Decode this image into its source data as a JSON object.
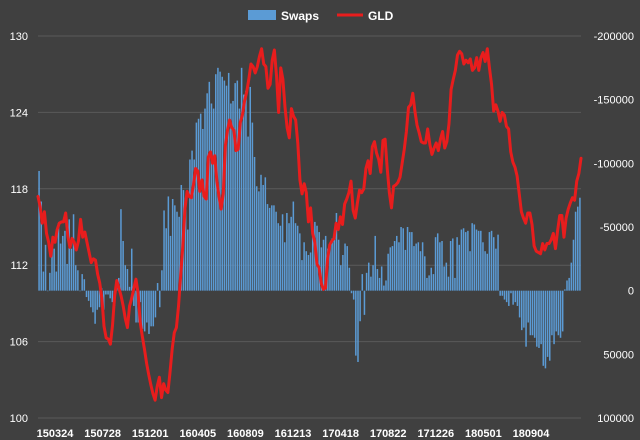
{
  "chart_data": {
    "type": "bar+line",
    "legend": {
      "placement": "top-center",
      "items": [
        {
          "label": "Swaps",
          "kind": "bar",
          "color": "#5b9bd5"
        },
        {
          "label": "GLD",
          "kind": "line",
          "color": "#e81d1d"
        }
      ]
    },
    "left_axis": {
      "range": [
        100,
        130
      ],
      "ticks": [
        100,
        106,
        112,
        118,
        124,
        130
      ],
      "tick_labels": [
        "100",
        "106",
        "112",
        "118",
        "124",
        "130"
      ]
    },
    "right_axis": {
      "range": [
        -200000,
        100000
      ],
      "reversed": true,
      "ticks": [
        -200000,
        -150000,
        -100000,
        -50000,
        0,
        50000,
        100000
      ],
      "tick_labels": [
        "-200000",
        "-150000",
        "-100000",
        "-50000",
        "0",
        "50000",
        "100000"
      ]
    },
    "x_tick_labels": [
      "150324",
      "150728",
      "151201",
      "160405",
      "160809",
      "161213",
      "170418",
      "170822",
      "171226",
      "180501",
      "180904"
    ],
    "grid": {
      "horizontal": true,
      "vertical": false
    },
    "swaps_values": [
      -94000,
      -70000,
      -15000,
      -36000,
      0,
      -14000,
      -39000,
      -33000,
      -15000,
      -53000,
      -37000,
      -43000,
      -47000,
      -21000,
      -56000,
      -33000,
      -60000,
      -20000,
      -16000,
      0,
      -13000,
      -9000,
      5000,
      8000,
      13000,
      17000,
      26000,
      15000,
      13000,
      -2000,
      15000,
      3000,
      3000,
      6000,
      9000,
      12000,
      -4000,
      -10000,
      -64000,
      -39000,
      -20000,
      -17000,
      -3000,
      -33000,
      12000,
      25000,
      25000,
      9000,
      30000,
      32000,
      25000,
      34000,
      28000,
      28000,
      21000,
      -6000,
      13000,
      -16000,
      -63000,
      -49000,
      -74000,
      -43000,
      -72000,
      -67000,
      -62000,
      -58000,
      -83000,
      -79000,
      -73000,
      -48000,
      -103000,
      -110000,
      -103000,
      -132000,
      -135000,
      -139000,
      -127000,
      -143000,
      -155000,
      -164000,
      -147000,
      -143000,
      -170000,
      -175000,
      -172000,
      -168000,
      -165000,
      -161000,
      -171000,
      -147000,
      -149000,
      -163000,
      -165000,
      -143000,
      -175000,
      -154000,
      -157000,
      -121000,
      -160000,
      -132000,
      -105000,
      -82000,
      -78000,
      -91000,
      -83000,
      -89000,
      -68000,
      -65000,
      -67000,
      -67000,
      -62000,
      -53000,
      -51000,
      -60000,
      -38000,
      -61000,
      -53000,
      -58000,
      -70000,
      -53000,
      -51000,
      -45000,
      -24000,
      -38000,
      -31000,
      -28000,
      -30000,
      -52000,
      -54000,
      -51000,
      -46000,
      -34000,
      -40000,
      -43000,
      -33000,
      -36000,
      -41000,
      -43000,
      -61000,
      -40000,
      -20000,
      -28000,
      -37000,
      -35000,
      -18000,
      2000,
      7000,
      51000,
      56000,
      24000,
      -13000,
      19000,
      -14000,
      -22000,
      -11000,
      -20000,
      -43000,
      -17000,
      -10000,
      -19000,
      -4000,
      -8000,
      -29000,
      -34000,
      -35000,
      -39000,
      -43000,
      -38000,
      -50000,
      -49000,
      -32000,
      -50000,
      -46000,
      -46000,
      -35000,
      -37000,
      -38000,
      -31000,
      -38000,
      -27000,
      -10000,
      -12000,
      -18000,
      -13000,
      -42000,
      -45000,
      -38000,
      -39000,
      -19000,
      -22000,
      -11000,
      -39000,
      -41000,
      -10000,
      -42000,
      -36000,
      -48000,
      -49000,
      -46000,
      -47000,
      -31000,
      -53000,
      -52000,
      -48000,
      -47000,
      -47000,
      -38000,
      -31000,
      -29000,
      -46000,
      -47000,
      -42000,
      -33000,
      -44000,
      4000,
      4000,
      7000,
      9000,
      12000,
      2000,
      11000,
      9000,
      12000,
      21000,
      31000,
      29000,
      44000,
      25000,
      35000,
      35000,
      37000,
      44000,
      45000,
      42000,
      59000,
      61000,
      52000,
      55000,
      35000,
      42000,
      32000,
      35000,
      37000,
      32000,
      -1000,
      -8000,
      -10000,
      -22000,
      -40000,
      -62000,
      -66000,
      -73000
    ],
    "gld_values": [
      117.4,
      116.6,
      115.3,
      116.2,
      114.5,
      113.8,
      112.7,
      114.2,
      113.8,
      114.8,
      115.3,
      115.4,
      115.4,
      116.1,
      114.3,
      113.4,
      114.1,
      113.8,
      113.2,
      113.9,
      115.6,
      114.2,
      114.6,
      113.8,
      113.0,
      112.2,
      112.5,
      112.4,
      111.3,
      110.6,
      109.4,
      107.2,
      106.3,
      106.2,
      105.8,
      107.3,
      109.6,
      110.8,
      110.2,
      109.6,
      108.8,
      107.8,
      107.1,
      108.8,
      109.4,
      110.2,
      110.9,
      109.8,
      107.5,
      106.4,
      105.4,
      104.3,
      103.4,
      102.6,
      101.9,
      101.4,
      102.5,
      103.2,
      101.6,
      102.7,
      102.2,
      102.0,
      103.6,
      105.4,
      106.7,
      107.1,
      108.8,
      111.2,
      113.5,
      116.4,
      117.8,
      117.4,
      117.3,
      118.3,
      119.6,
      119.4,
      117.8,
      118.7,
      117.4,
      117.2,
      120.5,
      120.9,
      120.0,
      120.6,
      118.6,
      117.4,
      116.4,
      117.6,
      121.4,
      122.6,
      123.4,
      122.8,
      122.6,
      121.0,
      121.1,
      123.2,
      123.8,
      124.9,
      125.6,
      126.6,
      127.8,
      127.6,
      127.1,
      127.6,
      128.4,
      129.0,
      127.8,
      127.6,
      125.9,
      126.2,
      128.1,
      128.9,
      126.9,
      124.0,
      127.5,
      126.6,
      124.4,
      122.8,
      122.0,
      124.3,
      123.7,
      123.4,
      121.6,
      118.7,
      117.6,
      118.4,
      117.7,
      115.4,
      116.5,
      114.5,
      113.8,
      112.1,
      111.8,
      110.6,
      110.1,
      110.2,
      112.5,
      113.6,
      113.9,
      114.1,
      115.3,
      114.8,
      115.8,
      115.2,
      116.8,
      117.2,
      117.7,
      118.6,
      116.3,
      115.7,
      116.9,
      117.9,
      117.7,
      118.0,
      119.6,
      120.2,
      119.2,
      121.3,
      121.7,
      120.8,
      120.3,
      119.3,
      121.8,
      121.9,
      119.6,
      117.7,
      116.5,
      118.2,
      118.3,
      118.5,
      118.9,
      120.0,
      121.1,
      122.5,
      124.4,
      124.6,
      125.5,
      124.1,
      123.0,
      122.4,
      121.7,
      121.6,
      121.6,
      122.7,
      121.5,
      120.7,
      121.2,
      121.6,
      121.0,
      121.9,
      122.5,
      121.2,
      121.7,
      123.1,
      125.8,
      126.6,
      127.3,
      128.5,
      128.8,
      128.6,
      127.8,
      128.1,
      127.9,
      128.2,
      127.3,
      127.5,
      128.3,
      127.3,
      128.3,
      128.7,
      128.0,
      129.0,
      127.5,
      126.2,
      124.1,
      124.6,
      124.1,
      123.3,
      124.0,
      123.8,
      122.9,
      122.7,
      120.9,
      120.1,
      119.7,
      119.0,
      117.6,
      116.2,
      115.7,
      115.3,
      116.1,
      116.1,
      115.2,
      113.5,
      113.1,
      113.0,
      112.9,
      113.7,
      113.2,
      113.7,
      113.7,
      114.0,
      114.5,
      113.3,
      114.7,
      115.9,
      115.9,
      114.2,
      115.7,
      116.4,
      116.9,
      117.3,
      117.1,
      118.6,
      119.2,
      120.4
    ]
  }
}
